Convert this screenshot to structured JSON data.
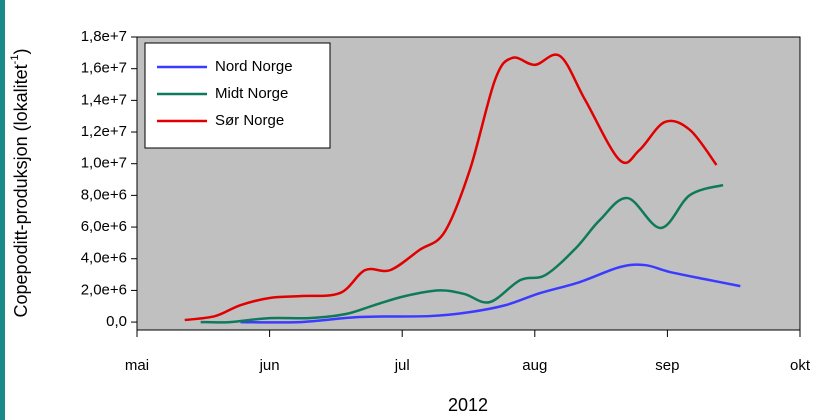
{
  "chart_data": {
    "type": "line",
    "ylabel": {
      "text": "Copepoditt-produksjon (lokalitet",
      "superscript": "-1",
      "close": ")"
    },
    "xlabel": "2012",
    "xlim": [
      5,
      10
    ],
    "xticks": [
      {
        "value": 5,
        "label": "mai"
      },
      {
        "value": 6,
        "label": "jun"
      },
      {
        "value": 7,
        "label": "jul"
      },
      {
        "value": 8,
        "label": "aug"
      },
      {
        "value": 9,
        "label": "sep"
      },
      {
        "value": 10,
        "label": "okt"
      }
    ],
    "ylim": [
      -500000,
      18000000
    ],
    "yticks": [
      {
        "value": 0,
        "label": "0,0"
      },
      {
        "value": 2000000,
        "label": "2,0e+6"
      },
      {
        "value": 4000000,
        "label": "4,0e+6"
      },
      {
        "value": 6000000,
        "label": "6,0e+6"
      },
      {
        "value": 8000000,
        "label": "8,0e+6"
      },
      {
        "value": 10000000,
        "label": "1,0e+7"
      },
      {
        "value": 12000000,
        "label": "1,2e+7"
      },
      {
        "value": 14000000,
        "label": "1,4e+7"
      },
      {
        "value": 16000000,
        "label": "1,6e+7"
      },
      {
        "value": 18000000,
        "label": "1,8e+7"
      }
    ],
    "legend": "upper left",
    "series": [
      {
        "name": "Nord Norge",
        "color": "#3b3bff",
        "x": [
          5.78,
          6.23,
          6.68,
          7.21,
          7.51,
          7.78,
          8.04,
          8.34,
          8.64,
          8.83,
          9.02,
          9.32,
          9.55
        ],
        "values": [
          0,
          0,
          320000,
          380000,
          630000,
          1070000,
          1830000,
          2530000,
          3470000,
          3600000,
          3160000,
          2650000,
          2270000
        ]
      },
      {
        "name": "Midt Norge",
        "color": "#0f7a5a",
        "x": [
          5.48,
          5.7,
          6.0,
          6.3,
          6.57,
          6.79,
          7.02,
          7.28,
          7.47,
          7.66,
          7.89,
          8.08,
          8.31,
          8.49,
          8.7,
          8.95,
          9.17,
          9.42
        ],
        "values": [
          0,
          0,
          250000,
          250000,
          500000,
          1070000,
          1640000,
          2000000,
          1770000,
          1260000,
          2650000,
          2970000,
          4670000,
          6440000,
          7830000,
          5940000,
          8020000,
          8650000
        ]
      },
      {
        "name": "Sør Norge",
        "color": "#e00000",
        "x": [
          5.36,
          5.59,
          5.78,
          6.0,
          6.23,
          6.53,
          6.72,
          6.91,
          7.13,
          7.32,
          7.51,
          7.7,
          7.83,
          8.0,
          8.19,
          8.38,
          8.64,
          8.79,
          8.98,
          9.17,
          9.37
        ],
        "values": [
          130000,
          380000,
          1070000,
          1520000,
          1640000,
          1830000,
          3280000,
          3280000,
          4550000,
          5690000,
          9600000,
          15290000,
          16680000,
          16240000,
          16800000,
          14020000,
          10230000,
          10870000,
          12630000,
          12130000,
          9920000
        ]
      }
    ]
  }
}
